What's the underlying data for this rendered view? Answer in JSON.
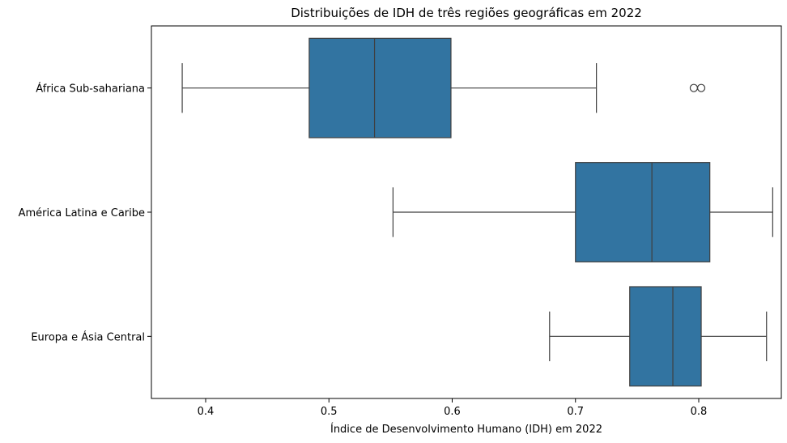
{
  "chart_data": {
    "type": "boxplot",
    "orientation": "horizontal",
    "title": "Distribuições de IDH de três regiões geográficas em 2022",
    "xlabel": "Índice de Desenvolvimento Humano (IDH) em 2022",
    "ylabel": "",
    "xlim": [
      0.356,
      0.867
    ],
    "xticks": [
      "0.4",
      "0.5",
      "0.6",
      "0.7",
      "0.8"
    ],
    "xtick_values": [
      0.4,
      0.5,
      0.6,
      0.7,
      0.8
    ],
    "categories": [
      "África Sub-sahariana",
      "América Latina e Caribe",
      "Europa e Ásia Central"
    ],
    "box_color": "#3274a1",
    "line_color": "#3f3f3f",
    "grid": false,
    "legend": false,
    "boxes": [
      {
        "category": "África Sub-sahariana",
        "whisker_low": 0.381,
        "q1": 0.484,
        "median": 0.537,
        "q3": 0.599,
        "whisker_high": 0.717,
        "outliers": [
          0.796,
          0.802
        ]
      },
      {
        "category": "América Latina e Caribe",
        "whisker_low": 0.552,
        "q1": 0.7,
        "median": 0.762,
        "q3": 0.809,
        "whisker_high": 0.86,
        "outliers": []
      },
      {
        "category": "Europa e Ásia Central",
        "whisker_low": 0.679,
        "q1": 0.744,
        "median": 0.779,
        "q3": 0.802,
        "whisker_high": 0.855,
        "outliers": []
      }
    ]
  }
}
